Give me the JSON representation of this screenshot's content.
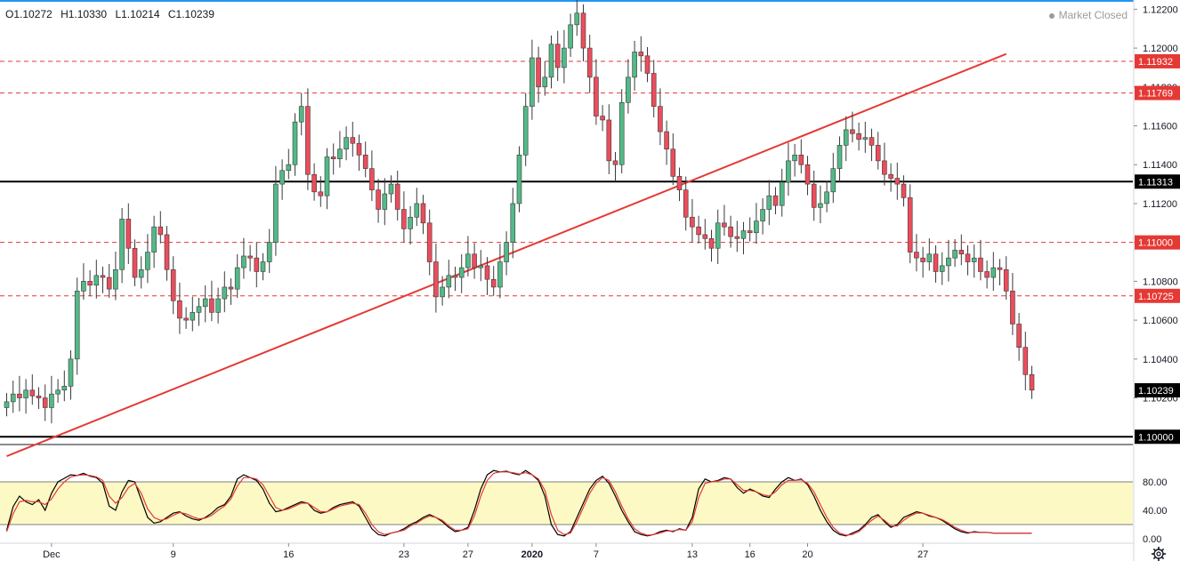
{
  "ohlc": {
    "open": "O1.10272",
    "high": "H1.10330",
    "low": "L1.10214",
    "close": "C1.10239"
  },
  "market_status": "Market Closed",
  "settings_icon": "gear-icon",
  "colors": {
    "up": "#53b987",
    "down": "#eb4d5c",
    "trend": "#e53935",
    "level": "#000000",
    "dash": "#e53935",
    "stoch_k": "#000000",
    "stoch_d": "#e53935",
    "band_fill": "#fdf9c4"
  },
  "chart_data": [
    {
      "type": "candlestick",
      "title": "",
      "ylim": [
        1.0996,
        1.1222
      ],
      "y_ticks": [
        "1.12200",
        "1.12000",
        "1.11800",
        "1.11600",
        "1.11400",
        "1.11200",
        "1.11000",
        "1.10800",
        "1.10600",
        "1.10400",
        "1.10200"
      ],
      "x_labels": [
        {
          "label": "Dec",
          "i": 7
        },
        {
          "label": "9",
          "i": 26
        },
        {
          "label": "16",
          "i": 44
        },
        {
          "label": "23",
          "i": 62
        },
        {
          "label": "27",
          "i": 72
        },
        {
          "label": "2020",
          "i": 82
        },
        {
          "label": "7",
          "i": 92
        },
        {
          "label": "13",
          "i": 107
        },
        {
          "label": "16",
          "i": 116
        },
        {
          "label": "20",
          "i": 125
        },
        {
          "label": "27",
          "i": 143
        }
      ],
      "horizontal_levels": [
        {
          "value": 1.11313,
          "label": "1.11313",
          "style": "solid",
          "color": "#000000"
        },
        {
          "value": 1.1,
          "label": "1.10000",
          "style": "solid",
          "color": "#000000"
        },
        {
          "value": 1.11932,
          "label": "1.11932",
          "style": "dashed",
          "color": "#e53935"
        },
        {
          "value": 1.11769,
          "label": "1.11769",
          "style": "dashed",
          "color": "#e53935"
        },
        {
          "value": 1.11,
          "label": "1.11000",
          "style": "dashed",
          "color": "#e53935"
        },
        {
          "value": 1.10725,
          "label": "1.10725",
          "style": "dashed",
          "color": "#e53935"
        }
      ],
      "trendline": {
        "from": {
          "i": 0,
          "value": 1.099
        },
        "to": {
          "i": 156,
          "value": 1.1197
        }
      },
      "current_price": {
        "value": 1.10239,
        "label": "1.10239"
      },
      "close": [
        1.1018,
        1.1022,
        1.102,
        1.1024,
        1.1021,
        1.102,
        1.1015,
        1.1022,
        1.1024,
        1.1026,
        1.104,
        1.1075,
        1.108,
        1.1078,
        1.1083,
        1.1082,
        1.1076,
        1.1086,
        1.1112,
        1.1097,
        1.1082,
        1.1086,
        1.1095,
        1.1108,
        1.1104,
        1.1086,
        1.107,
        1.1061,
        1.106,
        1.1064,
        1.1067,
        1.1071,
        1.1064,
        1.1071,
        1.1077,
        1.1076,
        1.1087,
        1.1093,
        1.1092,
        1.1085,
        1.109,
        1.11,
        1.113,
        1.1137,
        1.114,
        1.1162,
        1.117,
        1.1135,
        1.1126,
        1.1124,
        1.1144,
        1.1143,
        1.1148,
        1.1154,
        1.1151,
        1.1145,
        1.1138,
        1.1127,
        1.1117,
        1.1125,
        1.113,
        1.1117,
        1.1107,
        1.1113,
        1.112,
        1.111,
        1.109,
        1.1072,
        1.1077,
        1.1083,
        1.1082,
        1.1087,
        1.1094,
        1.1087,
        1.1088,
        1.1081,
        1.1077,
        1.109,
        1.11,
        1.112,
        1.1145,
        1.117,
        1.1195,
        1.118,
        1.1185,
        1.1202,
        1.119,
        1.12,
        1.1212,
        1.1218,
        1.12,
        1.1185,
        1.1165,
        1.1163,
        1.1142,
        1.114,
        1.1172,
        1.1185,
        1.1198,
        1.1196,
        1.1187,
        1.117,
        1.1157,
        1.1148,
        1.1134,
        1.1127,
        1.1113,
        1.1108,
        1.1104,
        1.1102,
        1.1097,
        1.111,
        1.1108,
        1.1103,
        1.1102,
        1.1106,
        1.1105,
        1.1111,
        1.1117,
        1.1124,
        1.1119,
        1.1131,
        1.1142,
        1.1145,
        1.114,
        1.113,
        1.1118,
        1.112,
        1.1126,
        1.1138,
        1.115,
        1.1158,
        1.1156,
        1.1153,
        1.1154,
        1.115,
        1.1142,
        1.1135,
        1.1133,
        1.113,
        1.1123,
        1.1095,
        1.1092,
        1.109,
        1.1094,
        1.1085,
        1.1088,
        1.1092,
        1.1096,
        1.1094,
        1.109,
        1.1092,
        1.1085,
        1.1082,
        1.1087,
        1.1086,
        1.1075,
        1.1058,
        1.1046,
        1.1032,
        1.1024
      ],
      "pane_separator_value": 1.0996
    },
    {
      "type": "line",
      "title": "",
      "name": "Stochastic",
      "ylim": [
        0,
        100
      ],
      "y_ticks": [
        "80.00",
        "40.00",
        "0.00"
      ],
      "band": [
        20,
        80
      ],
      "series": [
        {
          "key": "k",
          "values": [
            12,
            45,
            60,
            52,
            48,
            55,
            40,
            64,
            80,
            85,
            90,
            89,
            92,
            88,
            86,
            78,
            46,
            40,
            66,
            82,
            80,
            55,
            30,
            22,
            24,
            30,
            36,
            38,
            32,
            28,
            26,
            30,
            36,
            44,
            48,
            60,
            84,
            90,
            86,
            82,
            70,
            50,
            38,
            40,
            44,
            48,
            52,
            50,
            40,
            36,
            38,
            44,
            48,
            50,
            52,
            46,
            30,
            14,
            6,
            4,
            8,
            10,
            14,
            20,
            24,
            30,
            34,
            30,
            24,
            16,
            10,
            12,
            16,
            40,
            70,
            90,
            96,
            94,
            95,
            92,
            90,
            96,
            90,
            82,
            60,
            20,
            6,
            4,
            10,
            30,
            50,
            70,
            82,
            88,
            78,
            60,
            40,
            24,
            10,
            6,
            4,
            6,
            10,
            12,
            10,
            14,
            12,
            30,
            70,
            84,
            80,
            82,
            86,
            84,
            72,
            64,
            70,
            66,
            60,
            58,
            70,
            80,
            86,
            82,
            84,
            76,
            60,
            40,
            24,
            12,
            6,
            4,
            8,
            12,
            20,
            30,
            34,
            24,
            16,
            20,
            30,
            34,
            38,
            36,
            32,
            30,
            26,
            20,
            14,
            10,
            8,
            10,
            9,
            9,
            8,
            8,
            8,
            8,
            8,
            8,
            8
          ]
        },
        {
          "key": "d",
          "values": [
            10,
            35,
            52,
            54,
            52,
            52,
            48,
            56,
            70,
            80,
            87,
            89,
            90,
            89,
            87,
            82,
            60,
            50,
            58,
            72,
            78,
            64,
            42,
            30,
            26,
            28,
            33,
            37,
            35,
            31,
            28,
            29,
            33,
            40,
            46,
            56,
            74,
            86,
            86,
            84,
            76,
            60,
            44,
            40,
            42,
            46,
            50,
            50,
            44,
            38,
            38,
            42,
            46,
            48,
            50,
            48,
            36,
            20,
            10,
            6,
            8,
            10,
            12,
            18,
            22,
            28,
            32,
            30,
            26,
            18,
            12,
            12,
            14,
            32,
            60,
            82,
            92,
            94,
            94,
            93,
            91,
            93,
            90,
            84,
            68,
            34,
            12,
            6,
            8,
            24,
            44,
            64,
            78,
            86,
            82,
            66,
            46,
            28,
            14,
            8,
            5,
            6,
            8,
            11,
            11,
            13,
            12,
            24,
            58,
            78,
            80,
            81,
            84,
            84,
            76,
            68,
            68,
            66,
            62,
            60,
            66,
            76,
            82,
            82,
            83,
            78,
            66,
            48,
            30,
            16,
            8,
            5,
            6,
            10,
            18,
            26,
            32,
            26,
            18,
            18,
            26,
            32,
            36,
            36,
            33,
            30,
            27,
            22,
            16,
            12,
            9,
            9,
            9,
            9,
            8,
            8,
            8,
            8,
            8,
            8,
            8
          ]
        }
      ]
    }
  ]
}
